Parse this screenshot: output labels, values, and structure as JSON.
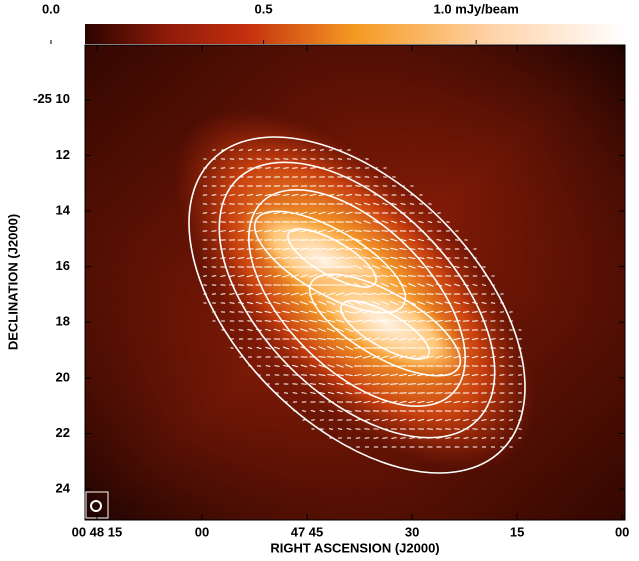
{
  "chart_data": {
    "type": "image",
    "colorbar": {
      "clim": [
        0.08,
        1.35
      ],
      "ticks": [
        {
          "value": 0,
          "label": "0.0"
        },
        0.5,
        {
          "value": 1.0,
          "label": "1.0 mJy/beam"
        }
      ]
    },
    "xlabel": "RIGHT ASCENSION (J2000)",
    "ylabel": "DECLINATION (J2000)",
    "xlim": [
      76.7,
      -0.4
    ],
    "xticks": [
      {
        "value": 75,
        "label": "00 48 15"
      },
      {
        "value": 60,
        "label": "00"
      },
      {
        "value": 45,
        "label": "47 45"
      },
      30,
      15,
      {
        "value": 0,
        "label": "00"
      }
    ],
    "ylim": [
      8.03,
      25.11
    ],
    "yticks": [
      {
        "value": 10,
        "label": "-25 10"
      },
      12,
      14,
      16,
      18,
      20,
      22,
      24
    ]
  }
}
